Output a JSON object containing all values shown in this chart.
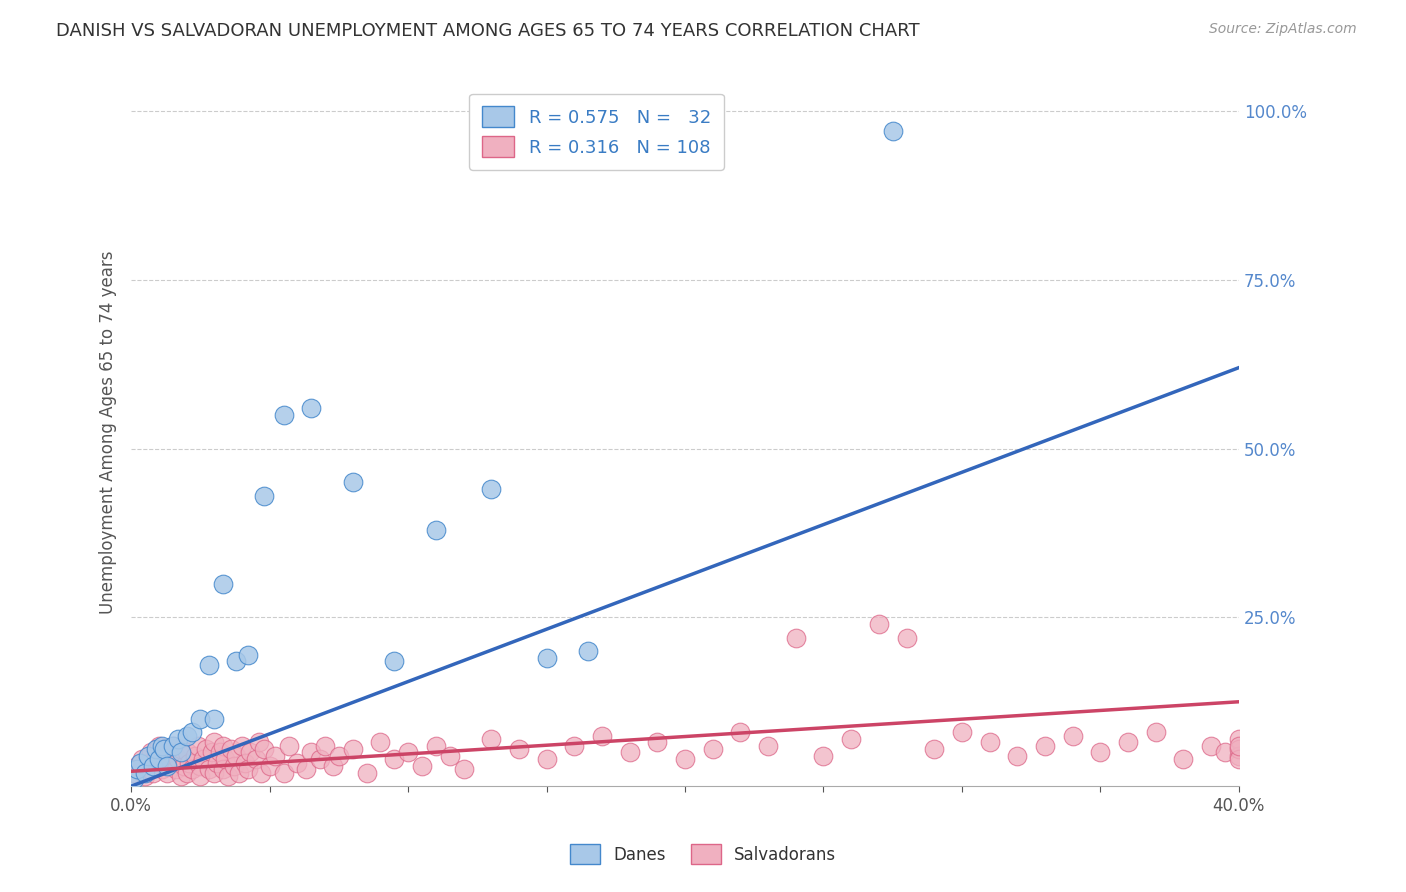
{
  "title": "DANISH VS SALVADORAN UNEMPLOYMENT AMONG AGES 65 TO 74 YEARS CORRELATION CHART",
  "source": "Source: ZipAtlas.com",
  "ylabel": "Unemployment Among Ages 65 to 74 years",
  "xlim": [
    0.0,
    0.4
  ],
  "ylim": [
    0.0,
    1.05
  ],
  "legend_r_blue": "0.575",
  "legend_n_blue": "32",
  "legend_r_pink": "0.316",
  "legend_n_pink": "108",
  "blue_fill": "#a8c8e8",
  "blue_edge": "#4488cc",
  "pink_fill": "#f0b0c0",
  "pink_edge": "#dd6688",
  "blue_line_color": "#3366bb",
  "pink_line_color": "#cc4466",
  "danes_x": [
    0.001,
    0.002,
    0.003,
    0.005,
    0.006,
    0.008,
    0.009,
    0.01,
    0.011,
    0.012,
    0.013,
    0.015,
    0.017,
    0.018,
    0.02,
    0.022,
    0.025,
    0.028,
    0.03,
    0.033,
    0.038,
    0.042,
    0.048,
    0.055,
    0.065,
    0.08,
    0.095,
    0.11,
    0.13,
    0.15,
    0.165,
    0.275
  ],
  "danes_y": [
    0.01,
    0.025,
    0.035,
    0.02,
    0.045,
    0.03,
    0.055,
    0.04,
    0.06,
    0.055,
    0.03,
    0.06,
    0.07,
    0.05,
    0.075,
    0.08,
    0.1,
    0.18,
    0.1,
    0.3,
    0.185,
    0.195,
    0.43,
    0.55,
    0.56,
    0.45,
    0.185,
    0.38,
    0.44,
    0.19,
    0.2,
    0.97
  ],
  "sal_x": [
    0.001,
    0.002,
    0.003,
    0.004,
    0.005,
    0.006,
    0.007,
    0.008,
    0.009,
    0.01,
    0.01,
    0.011,
    0.012,
    0.012,
    0.013,
    0.014,
    0.015,
    0.015,
    0.016,
    0.017,
    0.018,
    0.018,
    0.019,
    0.02,
    0.02,
    0.021,
    0.022,
    0.023,
    0.024,
    0.025,
    0.025,
    0.026,
    0.027,
    0.028,
    0.029,
    0.03,
    0.03,
    0.031,
    0.032,
    0.033,
    0.033,
    0.034,
    0.035,
    0.036,
    0.037,
    0.038,
    0.039,
    0.04,
    0.041,
    0.042,
    0.043,
    0.045,
    0.046,
    0.047,
    0.048,
    0.05,
    0.052,
    0.055,
    0.057,
    0.06,
    0.063,
    0.065,
    0.068,
    0.07,
    0.073,
    0.075,
    0.08,
    0.085,
    0.09,
    0.095,
    0.1,
    0.105,
    0.11,
    0.115,
    0.12,
    0.13,
    0.14,
    0.15,
    0.16,
    0.17,
    0.18,
    0.19,
    0.2,
    0.21,
    0.22,
    0.23,
    0.24,
    0.25,
    0.26,
    0.27,
    0.28,
    0.29,
    0.3,
    0.31,
    0.32,
    0.33,
    0.34,
    0.35,
    0.36,
    0.37,
    0.38,
    0.39,
    0.395,
    0.4,
    0.4,
    0.4,
    0.4,
    0.4
  ],
  "sal_y": [
    0.02,
    0.03,
    0.025,
    0.04,
    0.015,
    0.035,
    0.05,
    0.02,
    0.045,
    0.03,
    0.06,
    0.025,
    0.04,
    0.055,
    0.02,
    0.035,
    0.045,
    0.06,
    0.025,
    0.04,
    0.015,
    0.055,
    0.03,
    0.02,
    0.05,
    0.035,
    0.025,
    0.045,
    0.06,
    0.03,
    0.015,
    0.04,
    0.055,
    0.025,
    0.05,
    0.02,
    0.065,
    0.035,
    0.05,
    0.025,
    0.06,
    0.04,
    0.015,
    0.055,
    0.03,
    0.045,
    0.02,
    0.06,
    0.035,
    0.025,
    0.05,
    0.04,
    0.065,
    0.02,
    0.055,
    0.03,
    0.045,
    0.02,
    0.06,
    0.035,
    0.025,
    0.05,
    0.04,
    0.06,
    0.03,
    0.045,
    0.055,
    0.02,
    0.065,
    0.04,
    0.05,
    0.03,
    0.06,
    0.045,
    0.025,
    0.07,
    0.055,
    0.04,
    0.06,
    0.075,
    0.05,
    0.065,
    0.04,
    0.055,
    0.08,
    0.06,
    0.22,
    0.045,
    0.07,
    0.24,
    0.22,
    0.055,
    0.08,
    0.065,
    0.045,
    0.06,
    0.075,
    0.05,
    0.065,
    0.08,
    0.04,
    0.06,
    0.05,
    0.07,
    0.045,
    0.055,
    0.04,
    0.06
  ],
  "blue_line_x0": 0.0,
  "blue_line_y0": 0.0,
  "blue_line_x1": 0.4,
  "blue_line_y1": 0.62,
  "pink_line_x0": 0.0,
  "pink_line_y0": 0.022,
  "pink_line_x1": 0.4,
  "pink_line_y1": 0.125
}
